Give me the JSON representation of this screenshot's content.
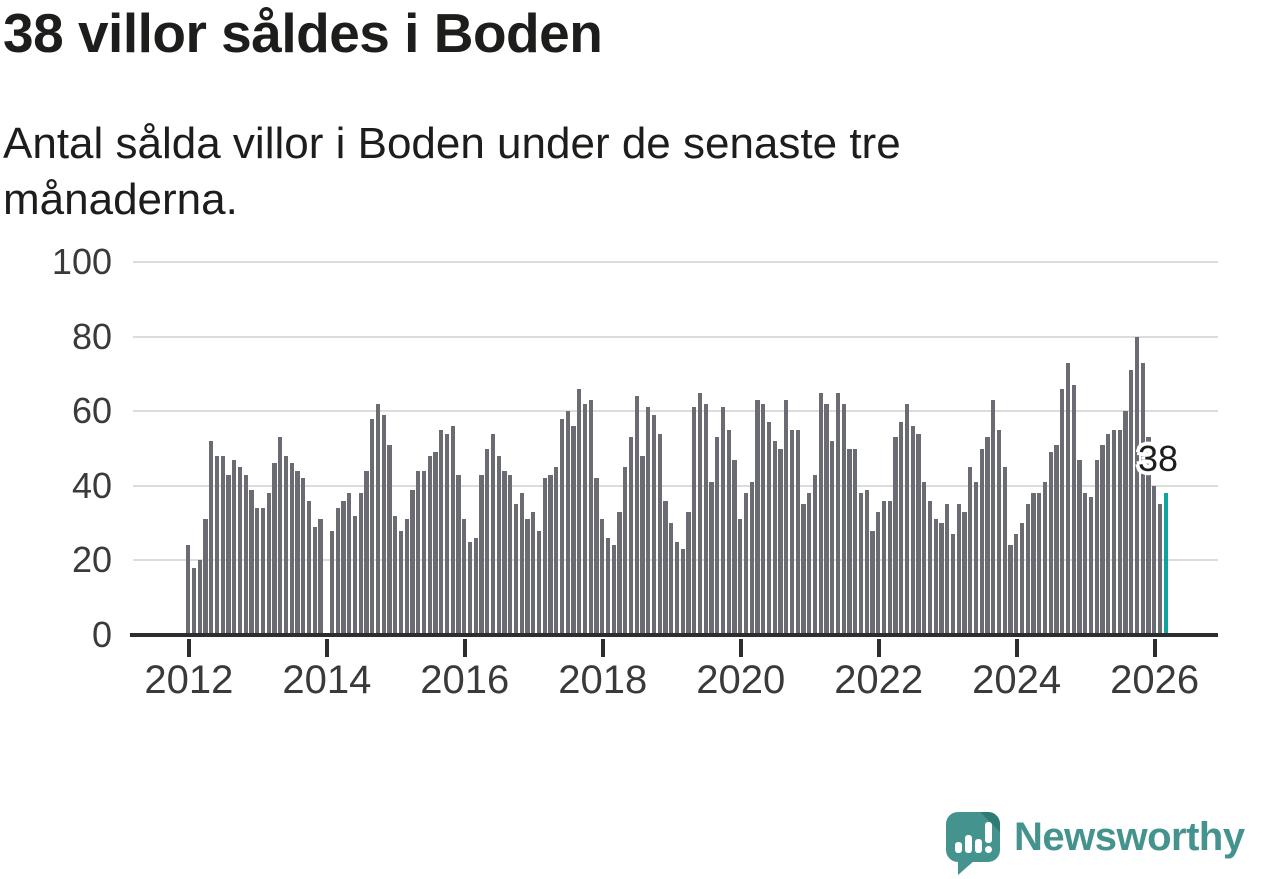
{
  "header": {
    "title": "38 villor såldes i Boden",
    "subtitle": "Antal sålda villor i Boden under de senaste tre månaderna."
  },
  "chart_data": {
    "type": "bar",
    "title": "38 villor såldes i Boden",
    "subtitle": "Antal sålda villor i Boden under de senaste tre månaderna.",
    "x_start": "2012-01",
    "frequency": "monthly",
    "values": [
      24,
      18,
      20,
      31,
      52,
      48,
      48,
      43,
      47,
      45,
      43,
      39,
      34,
      34,
      38,
      46,
      53,
      48,
      46,
      44,
      42,
      36,
      29,
      31,
      0,
      28,
      34,
      36,
      38,
      32,
      38,
      44,
      58,
      62,
      59,
      51,
      32,
      28,
      31,
      39,
      44,
      44,
      48,
      49,
      55,
      54,
      56,
      43,
      31,
      25,
      26,
      43,
      50,
      54,
      48,
      44,
      43,
      35,
      38,
      31,
      33,
      28,
      42,
      43,
      45,
      58,
      60,
      56,
      66,
      62,
      63,
      42,
      31,
      26,
      24,
      33,
      45,
      53,
      64,
      48,
      61,
      59,
      54,
      36,
      30,
      25,
      23,
      33,
      61,
      65,
      62,
      41,
      53,
      61,
      55,
      47,
      31,
      38,
      41,
      63,
      62,
      57,
      52,
      50,
      63,
      55,
      55,
      35,
      38,
      43,
      65,
      62,
      52,
      65,
      62,
      50,
      50,
      38,
      39,
      28,
      33,
      36,
      36,
      53,
      57,
      62,
      56,
      54,
      41,
      36,
      31,
      30,
      35,
      27,
      35,
      33,
      45,
      41,
      50,
      53,
      63,
      55,
      45,
      24,
      27,
      30,
      35,
      38,
      38,
      41,
      49,
      51,
      66,
      73,
      67,
      47,
      38,
      37,
      47,
      51,
      54,
      55,
      55,
      60,
      71,
      80,
      73,
      53,
      40,
      35,
      38
    ],
    "highlight": {
      "index": 170,
      "label": "38",
      "color": "#0fa49d"
    },
    "ylim": [
      0,
      100
    ],
    "yticks": [
      0,
      20,
      40,
      60,
      80,
      100
    ],
    "xticks": [
      "2012",
      "2014",
      "2016",
      "2018",
      "2020",
      "2022",
      "2024",
      "2026"
    ],
    "grid": "horizontal",
    "legend": "none",
    "colors": {
      "bar": "#6b6b73",
      "highlight": "#0fa49d",
      "axis": "#2d2d2d",
      "gridline": "#dcdcdc",
      "tick_label": "#3a3a3a"
    }
  },
  "annotation": {
    "label": "38"
  },
  "footer": {
    "brand": "Newsworthy"
  }
}
